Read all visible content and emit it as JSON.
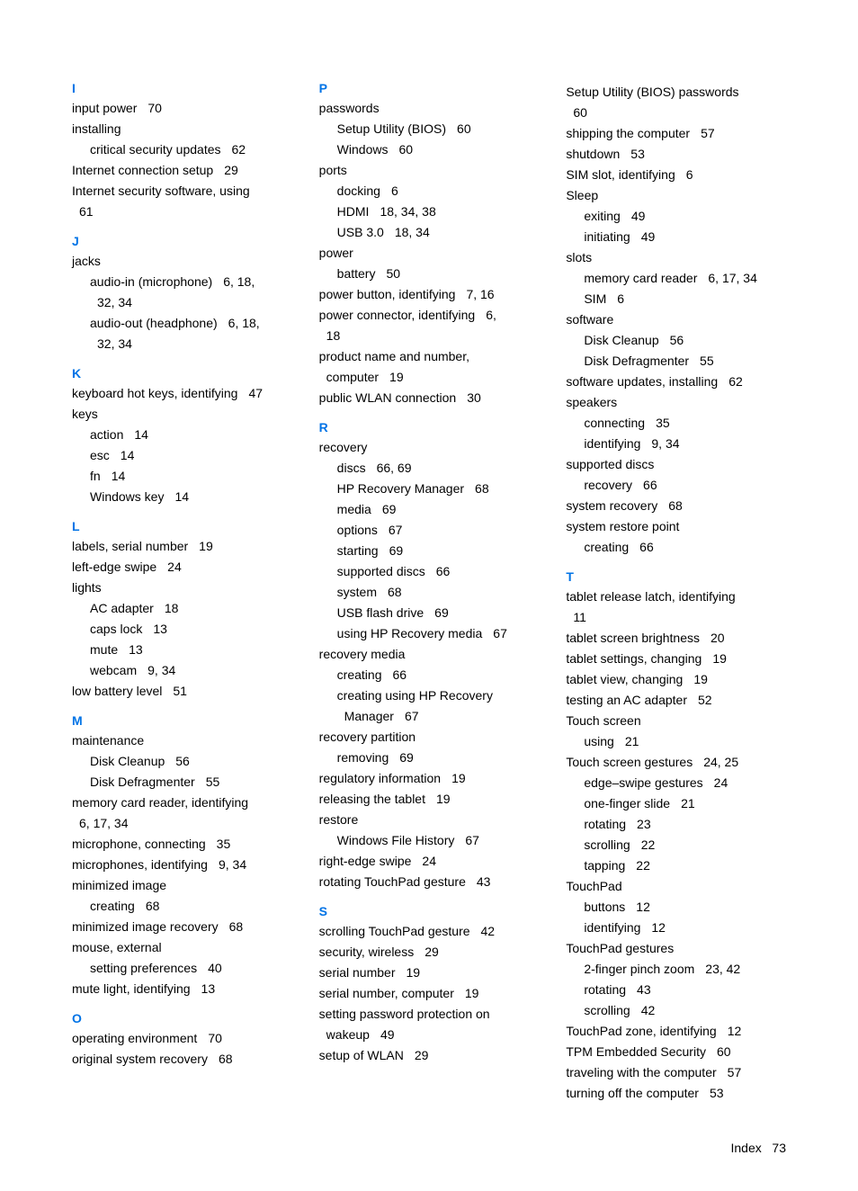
{
  "columns": [
    {
      "sections": [
        {
          "letter": "I",
          "first": true,
          "entries": [
            {
              "term": "input power",
              "pages": "70"
            },
            {
              "term": "installing"
            },
            {
              "term": "critical security updates",
              "pages": "62",
              "sub": true
            },
            {
              "term": "Internet connection setup",
              "pages": "29"
            },
            {
              "term": "Internet security software, using"
            },
            {
              "term": "61",
              "cont": true
            }
          ]
        },
        {
          "letter": "J",
          "entries": [
            {
              "term": "jacks"
            },
            {
              "term": "audio-in (microphone)",
              "pages": "6, 18,",
              "sub": true
            },
            {
              "term": "32, 34",
              "sub2": true
            },
            {
              "term": "audio-out (headphone)",
              "pages": "6, 18,",
              "sub": true
            },
            {
              "term": "32, 34",
              "sub2": true
            }
          ]
        },
        {
          "letter": "K",
          "entries": [
            {
              "term": "keyboard hot keys, identifying",
              "pages": "47"
            },
            {
              "term": "keys"
            },
            {
              "term": "action",
              "pages": "14",
              "sub": true
            },
            {
              "term": "esc",
              "pages": "14",
              "sub": true
            },
            {
              "term": "fn",
              "pages": "14",
              "sub": true
            },
            {
              "term": "Windows key",
              "pages": "14",
              "sub": true
            }
          ]
        },
        {
          "letter": "L",
          "entries": [
            {
              "term": "labels, serial number",
              "pages": "19"
            },
            {
              "term": "left-edge swipe",
              "pages": "24"
            },
            {
              "term": "lights"
            },
            {
              "term": "AC adapter",
              "pages": "18",
              "sub": true
            },
            {
              "term": "caps lock",
              "pages": "13",
              "sub": true
            },
            {
              "term": "mute",
              "pages": "13",
              "sub": true
            },
            {
              "term": "webcam",
              "pages": "9, 34",
              "sub": true
            },
            {
              "term": "low battery level",
              "pages": "51"
            }
          ]
        },
        {
          "letter": "M",
          "entries": [
            {
              "term": "maintenance"
            },
            {
              "term": "Disk Cleanup",
              "pages": "56",
              "sub": true
            },
            {
              "term": "Disk Defragmenter",
              "pages": "55",
              "sub": true
            },
            {
              "term": "memory card reader, identifying"
            },
            {
              "term": "6, 17, 34",
              "cont": true
            },
            {
              "term": "microphone, connecting",
              "pages": "35"
            },
            {
              "term": "microphones, identifying",
              "pages": "9, 34"
            },
            {
              "term": "minimized image"
            },
            {
              "term": "creating",
              "pages": "68",
              "sub": true
            },
            {
              "term": "minimized image recovery",
              "pages": "68"
            },
            {
              "term": "mouse, external"
            },
            {
              "term": "setting preferences",
              "pages": "40",
              "sub": true
            },
            {
              "term": "mute light, identifying",
              "pages": "13"
            }
          ]
        },
        {
          "letter": "O",
          "entries": [
            {
              "term": "operating environment",
              "pages": "70"
            },
            {
              "term": "original system recovery",
              "pages": "68"
            }
          ]
        }
      ]
    },
    {
      "sections": [
        {
          "letter": "P",
          "first": true,
          "entries": [
            {
              "term": "passwords"
            },
            {
              "term": "Setup Utility (BIOS)",
              "pages": "60",
              "sub": true
            },
            {
              "term": "Windows",
              "pages": "60",
              "sub": true
            },
            {
              "term": "ports"
            },
            {
              "term": "docking",
              "pages": "6",
              "sub": true
            },
            {
              "term": "HDMI",
              "pages": "18, 34, 38",
              "sub": true
            },
            {
              "term": "USB 3.0",
              "pages": "18, 34",
              "sub": true
            },
            {
              "term": "power"
            },
            {
              "term": "battery",
              "pages": "50",
              "sub": true
            },
            {
              "term": "power button, identifying",
              "pages": "7, 16"
            },
            {
              "term": "power connector, identifying",
              "pages": "6,"
            },
            {
              "term": "18",
              "cont": true
            },
            {
              "term": "product name and number,"
            },
            {
              "term": "computer",
              "pages": "19",
              "cont": true
            },
            {
              "term": "public WLAN connection",
              "pages": "30"
            }
          ]
        },
        {
          "letter": "R",
          "entries": [
            {
              "term": "recovery"
            },
            {
              "term": "discs",
              "pages": "66, 69",
              "sub": true
            },
            {
              "term": "HP Recovery Manager",
              "pages": "68",
              "sub": true
            },
            {
              "term": "media",
              "pages": "69",
              "sub": true
            },
            {
              "term": "options",
              "pages": "67",
              "sub": true
            },
            {
              "term": "starting",
              "pages": "69",
              "sub": true
            },
            {
              "term": "supported discs",
              "pages": "66",
              "sub": true
            },
            {
              "term": "system",
              "pages": "68",
              "sub": true
            },
            {
              "term": "USB flash drive",
              "pages": "69",
              "sub": true
            },
            {
              "term": "using HP Recovery media",
              "pages": "67",
              "sub": true
            },
            {
              "term": "recovery media"
            },
            {
              "term": "creating",
              "pages": "66",
              "sub": true
            },
            {
              "term": "creating using HP Recovery",
              "sub": true
            },
            {
              "term": "Manager",
              "pages": "67",
              "sub2": true
            },
            {
              "term": "recovery partition"
            },
            {
              "term": "removing",
              "pages": "69",
              "sub": true
            },
            {
              "term": "regulatory information",
              "pages": "19"
            },
            {
              "term": "releasing the tablet",
              "pages": "19"
            },
            {
              "term": "restore"
            },
            {
              "term": "Windows File History",
              "pages": "67",
              "sub": true
            },
            {
              "term": "right-edge swipe",
              "pages": "24"
            },
            {
              "term": "rotating TouchPad gesture",
              "pages": "43"
            }
          ]
        },
        {
          "letter": "S",
          "entries": [
            {
              "term": "scrolling TouchPad gesture",
              "pages": "42"
            },
            {
              "term": "security, wireless",
              "pages": "29"
            },
            {
              "term": "serial number",
              "pages": "19"
            },
            {
              "term": "serial number, computer",
              "pages": "19"
            },
            {
              "term": "setting password protection on"
            },
            {
              "term": "wakeup",
              "pages": "49",
              "cont": true
            },
            {
              "term": "setup of WLAN",
              "pages": "29"
            }
          ]
        }
      ]
    },
    {
      "sections": [
        {
          "letter": "",
          "first": true,
          "entries": [
            {
              "term": "Setup Utility (BIOS) passwords"
            },
            {
              "term": "60",
              "cont": true
            },
            {
              "term": "shipping the computer",
              "pages": "57"
            },
            {
              "term": "shutdown",
              "pages": "53"
            },
            {
              "term": "SIM slot, identifying",
              "pages": "6"
            },
            {
              "term": "Sleep"
            },
            {
              "term": "exiting",
              "pages": "49",
              "sub": true
            },
            {
              "term": "initiating",
              "pages": "49",
              "sub": true
            },
            {
              "term": "slots"
            },
            {
              "term": "memory card reader",
              "pages": "6, 17, 34",
              "sub": true
            },
            {
              "term": "SIM",
              "pages": "6",
              "sub": true
            },
            {
              "term": "software"
            },
            {
              "term": "Disk Cleanup",
              "pages": "56",
              "sub": true
            },
            {
              "term": "Disk Defragmenter",
              "pages": "55",
              "sub": true
            },
            {
              "term": "software updates, installing",
              "pages": "62"
            },
            {
              "term": "speakers"
            },
            {
              "term": "connecting",
              "pages": "35",
              "sub": true
            },
            {
              "term": "identifying",
              "pages": "9, 34",
              "sub": true
            },
            {
              "term": "supported discs"
            },
            {
              "term": "recovery",
              "pages": "66",
              "sub": true
            },
            {
              "term": "system recovery",
              "pages": "68"
            },
            {
              "term": "system restore point"
            },
            {
              "term": "creating",
              "pages": "66",
              "sub": true
            }
          ]
        },
        {
          "letter": "T",
          "entries": [
            {
              "term": "tablet release latch, identifying"
            },
            {
              "term": "11",
              "cont": true
            },
            {
              "term": "tablet screen brightness",
              "pages": "20"
            },
            {
              "term": "tablet settings, changing",
              "pages": "19"
            },
            {
              "term": "tablet view, changing",
              "pages": "19"
            },
            {
              "term": "testing an AC adapter",
              "pages": "52"
            },
            {
              "term": "Touch screen"
            },
            {
              "term": "using",
              "pages": "21",
              "sub": true
            },
            {
              "term": "Touch screen gestures",
              "pages": "24, 25"
            },
            {
              "term": "edge–swipe gestures",
              "pages": "24",
              "sub": true
            },
            {
              "term": "one-finger slide",
              "pages": "21",
              "sub": true
            },
            {
              "term": "rotating",
              "pages": "23",
              "sub": true
            },
            {
              "term": "scrolling",
              "pages": "22",
              "sub": true
            },
            {
              "term": "tapping",
              "pages": "22",
              "sub": true
            },
            {
              "term": "TouchPad"
            },
            {
              "term": "buttons",
              "pages": "12",
              "sub": true
            },
            {
              "term": "identifying",
              "pages": "12",
              "sub": true
            },
            {
              "term": "TouchPad gestures"
            },
            {
              "term": "2-finger pinch zoom",
              "pages": "23, 42",
              "sub": true
            },
            {
              "term": "rotating",
              "pages": "43",
              "sub": true
            },
            {
              "term": "scrolling",
              "pages": "42",
              "sub": true
            },
            {
              "term": "TouchPad zone, identifying",
              "pages": "12"
            },
            {
              "term": "TPM Embedded Security",
              "pages": "60"
            },
            {
              "term": "traveling with the computer",
              "pages": "57"
            },
            {
              "term": "turning off the computer",
              "pages": "53"
            }
          ]
        }
      ]
    }
  ],
  "footer": {
    "label": "Index",
    "page": "73"
  }
}
